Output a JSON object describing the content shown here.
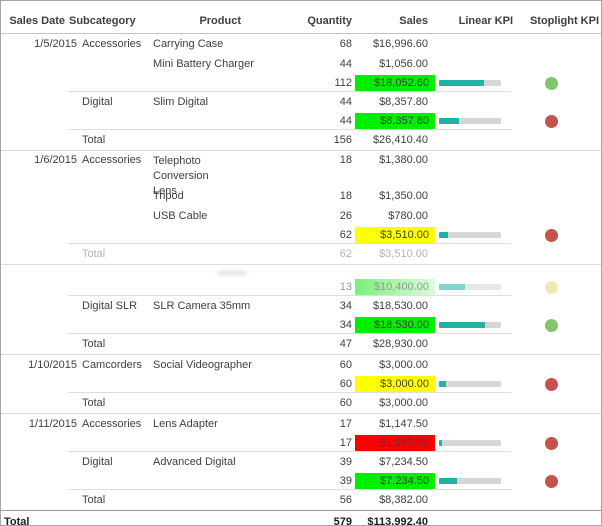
{
  "colors": {
    "cell_green": "#00ee00",
    "cell_yellow": "#ffff00",
    "cell_red": "#ff0000",
    "kpi_fill": "#22b1a7",
    "kpi_track": "#d6d6d6",
    "dot_green": "#82c56d",
    "dot_red": "#c4534f",
    "dot_yellow": "#e6d67e",
    "header_text": "#3f3f3f",
    "body_text": "#404040",
    "faded_text": "#b5b5b5",
    "grid_line": "#dedede",
    "header_line": "#c4c4c4",
    "grand_line": "#9b9b9b",
    "outer_border": "#a6a6a6"
  },
  "chart_data": {
    "type": "table",
    "columns": [
      "Sales Date",
      "Subcategory",
      "Product",
      "Quantity",
      "Sales",
      "Linear KPI",
      "Stoplight KPI"
    ],
    "sections": [
      {
        "date": "1/5/2015",
        "rows": [
          {
            "kind": "product",
            "subcategory": "Accessories",
            "product": "Carrying Case",
            "quantity": "68",
            "sales": "$16,996.60"
          },
          {
            "kind": "product",
            "product": "Mini Battery Charger",
            "quantity": "44",
            "sales": "$1,056.00"
          },
          {
            "kind": "subtotal",
            "quantity": "112",
            "sales": "$18,052.60",
            "sales_bg": "green",
            "kpi_pct": 72,
            "stoplight": "green"
          },
          {
            "kind": "product",
            "subcategory": "Digital",
            "product": "Slim Digital",
            "quantity": "44",
            "sales": "$8,357.80"
          },
          {
            "kind": "subtotal",
            "quantity": "44",
            "sales": "$8,357.80",
            "sales_bg": "green",
            "kpi_pct": 33,
            "stoplight": "red"
          },
          {
            "kind": "total",
            "label": "Total",
            "quantity": "156",
            "sales": "$26,410.40"
          }
        ]
      },
      {
        "date": "1/6/2015",
        "rows": [
          {
            "kind": "product",
            "subcategory": "Accessories",
            "product": "Telephoto Conversion\nLens",
            "quantity": "18",
            "sales": "$1,380.00",
            "wrap": true
          },
          {
            "kind": "product",
            "product": "Tripod",
            "quantity": "18",
            "sales": "$1,350.00"
          },
          {
            "kind": "product",
            "product": "USB Cable",
            "quantity": "26",
            "sales": "$780.00"
          },
          {
            "kind": "subtotal",
            "quantity": "62",
            "sales": "$3,510.00",
            "sales_bg": "yellow",
            "kpi_pct": 14,
            "stoplight": "red"
          },
          {
            "kind": "total",
            "label": "Total",
            "quantity": "62",
            "sales": "$3,510.00",
            "faded": true
          }
        ]
      },
      {
        "date": "",
        "rows": [
          {
            "kind": "gap"
          },
          {
            "kind": "subtotal",
            "quantity": "13",
            "sales": "$10,400.00",
            "sales_bg": "green-ghost",
            "kpi_pct": 42,
            "stoplight": "yellow",
            "faded": true
          },
          {
            "kind": "product",
            "subcategory": "Digital SLR",
            "product": "SLR Camera 35mm",
            "quantity": "34",
            "sales": "$18,530.00"
          },
          {
            "kind": "subtotal",
            "quantity": "34",
            "sales": "$18,530.00",
            "sales_bg": "green",
            "kpi_pct": 74,
            "stoplight": "green"
          },
          {
            "kind": "total",
            "label": "Total",
            "quantity": "47",
            "sales": "$28,930.00"
          }
        ]
      },
      {
        "date": "1/10/2015",
        "rows": [
          {
            "kind": "product",
            "subcategory": "Camcorders",
            "product": "Social Videographer",
            "quantity": "60",
            "sales": "$3,000.00"
          },
          {
            "kind": "subtotal",
            "quantity": "60",
            "sales": "$3,000.00",
            "sales_bg": "yellow",
            "kpi_pct": 12,
            "stoplight": "red"
          },
          {
            "kind": "total",
            "label": "Total",
            "quantity": "60",
            "sales": "$3,000.00"
          }
        ]
      },
      {
        "date": "1/11/2015",
        "rows": [
          {
            "kind": "product",
            "subcategory": "Accessories",
            "product": "Lens Adapter",
            "quantity": "17",
            "sales": "$1,147.50"
          },
          {
            "kind": "subtotal",
            "quantity": "17",
            "sales": "$1,147.50",
            "sales_bg": "red",
            "kpi_pct": 5,
            "stoplight": "red"
          },
          {
            "kind": "product",
            "subcategory": "Digital",
            "product": "Advanced Digital",
            "quantity": "39",
            "sales": "$7,234.50"
          },
          {
            "kind": "subtotal",
            "quantity": "39",
            "sales": "$7,234.50",
            "sales_bg": "green",
            "kpi_pct": 29,
            "stoplight": "red"
          },
          {
            "kind": "total",
            "label": "Total",
            "quantity": "56",
            "sales": "$8,382.00"
          }
        ]
      }
    ],
    "grand_total": {
      "label": "Total",
      "quantity": "579",
      "sales": "$113,992.40"
    }
  }
}
